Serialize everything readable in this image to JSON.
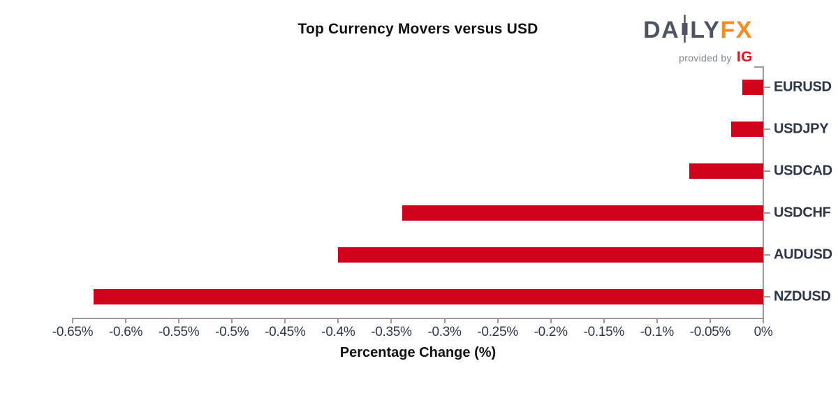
{
  "header": {
    "title": "Top Currency Movers versus USD",
    "logo": {
      "daily_prefix": "DA",
      "daily_suffix": "LY",
      "fx": "FX",
      "provided_by": "provided by",
      "ig": "IG"
    }
  },
  "chart_data": {
    "type": "bar",
    "orientation": "horizontal",
    "title": "Top Currency Movers versus USD",
    "categories": [
      "EURUSD",
      "USDJPY",
      "USDCAD",
      "USDCHF",
      "AUDUSD",
      "NZDUSD"
    ],
    "values": [
      -0.02,
      -0.03,
      -0.07,
      -0.34,
      -0.4,
      -0.63
    ],
    "xlabel": "Percentage Change (%)",
    "xlim": [
      -0.65,
      0
    ],
    "x_tick_labels": [
      "-0.65%",
      "-0.6%",
      "-0.55%",
      "-0.5%",
      "-0.45%",
      "-0.4%",
      "-0.35%",
      "-0.3%",
      "-0.25%",
      "-0.2%",
      "-0.15%",
      "-0.1%",
      "-0.05%",
      "0%"
    ],
    "grid": false,
    "legend": null,
    "bar_color": "#d0031b"
  },
  "colors": {
    "bar": "#d0031b",
    "axis": "#9b9b9b",
    "tick_label": "#2b3648",
    "title": "#111111",
    "logo_slate": "#4d5563",
    "logo_orange": "#f68b1f",
    "logo_ig_red": "#e8101c",
    "logo_gray": "#7e8794"
  }
}
